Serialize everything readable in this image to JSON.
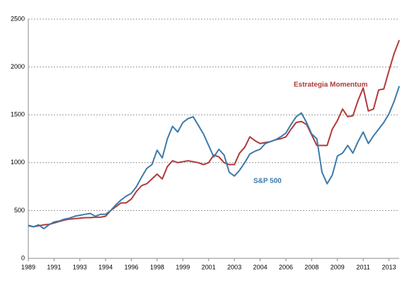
{
  "chart_data": {
    "type": "line",
    "categories": [
      "1989",
      null,
      null,
      null,
      null,
      "1991",
      null,
      null,
      null,
      null,
      "1993",
      null,
      null,
      null,
      null,
      "1994",
      null,
      null,
      null,
      null,
      "1996",
      null,
      null,
      null,
      null,
      "1998",
      null,
      null,
      null,
      null,
      "1999",
      null,
      null,
      null,
      null,
      "2001",
      null,
      null,
      null,
      null,
      "2003",
      null,
      null,
      null,
      null,
      "2004",
      null,
      null,
      null,
      null,
      "2006",
      null,
      null,
      null,
      null,
      "2008",
      null,
      null,
      null,
      null,
      "2009",
      null,
      null,
      null,
      null,
      "2011",
      null,
      null,
      null,
      null,
      "2013",
      null,
      null
    ],
    "series": [
      {
        "name": "Estrategia Momentum",
        "color": "#b03a3a",
        "values": [
          345,
          330,
          340,
          350,
          355,
          370,
          385,
          400,
          410,
          415,
          420,
          425,
          425,
          430,
          430,
          440,
          500,
          540,
          580,
          580,
          620,
          700,
          760,
          780,
          830,
          880,
          830,
          960,
          1020,
          1000,
          1010,
          1020,
          1010,
          1000,
          980,
          1000,
          1080,
          1060,
          1000,
          980,
          980,
          1100,
          1160,
          1270,
          1230,
          1200,
          1210,
          1220,
          1240,
          1250,
          1270,
          1350,
          1420,
          1430,
          1400,
          1290,
          1180,
          1180,
          1180,
          1350,
          1440,
          1560,
          1480,
          1490,
          1650,
          1780,
          1540,
          1560,
          1760,
          1770,
          1960,
          2140,
          2280
        ]
      },
      {
        "name": "S&P 500",
        "color": "#3d7aaa",
        "values": [
          340,
          330,
          350,
          310,
          350,
          380,
          390,
          410,
          420,
          440,
          450,
          460,
          470,
          440,
          460,
          460,
          500,
          560,
          610,
          650,
          680,
          750,
          850,
          940,
          980,
          1130,
          1050,
          1250,
          1380,
          1320,
          1420,
          1460,
          1480,
          1390,
          1300,
          1180,
          1060,
          1140,
          1080,
          900,
          860,
          920,
          1000,
          1090,
          1120,
          1140,
          1200,
          1220,
          1240,
          1270,
          1310,
          1400,
          1480,
          1520,
          1420,
          1300,
          1250,
          900,
          780,
          870,
          1070,
          1100,
          1180,
          1100,
          1220,
          1320,
          1200,
          1280,
          1350,
          1420,
          1510,
          1640,
          1800
        ]
      }
    ],
    "ylim": [
      0,
      2500
    ],
    "yticks": [
      0,
      500,
      1000,
      1500,
      2000,
      2500
    ],
    "grid": true
  }
}
